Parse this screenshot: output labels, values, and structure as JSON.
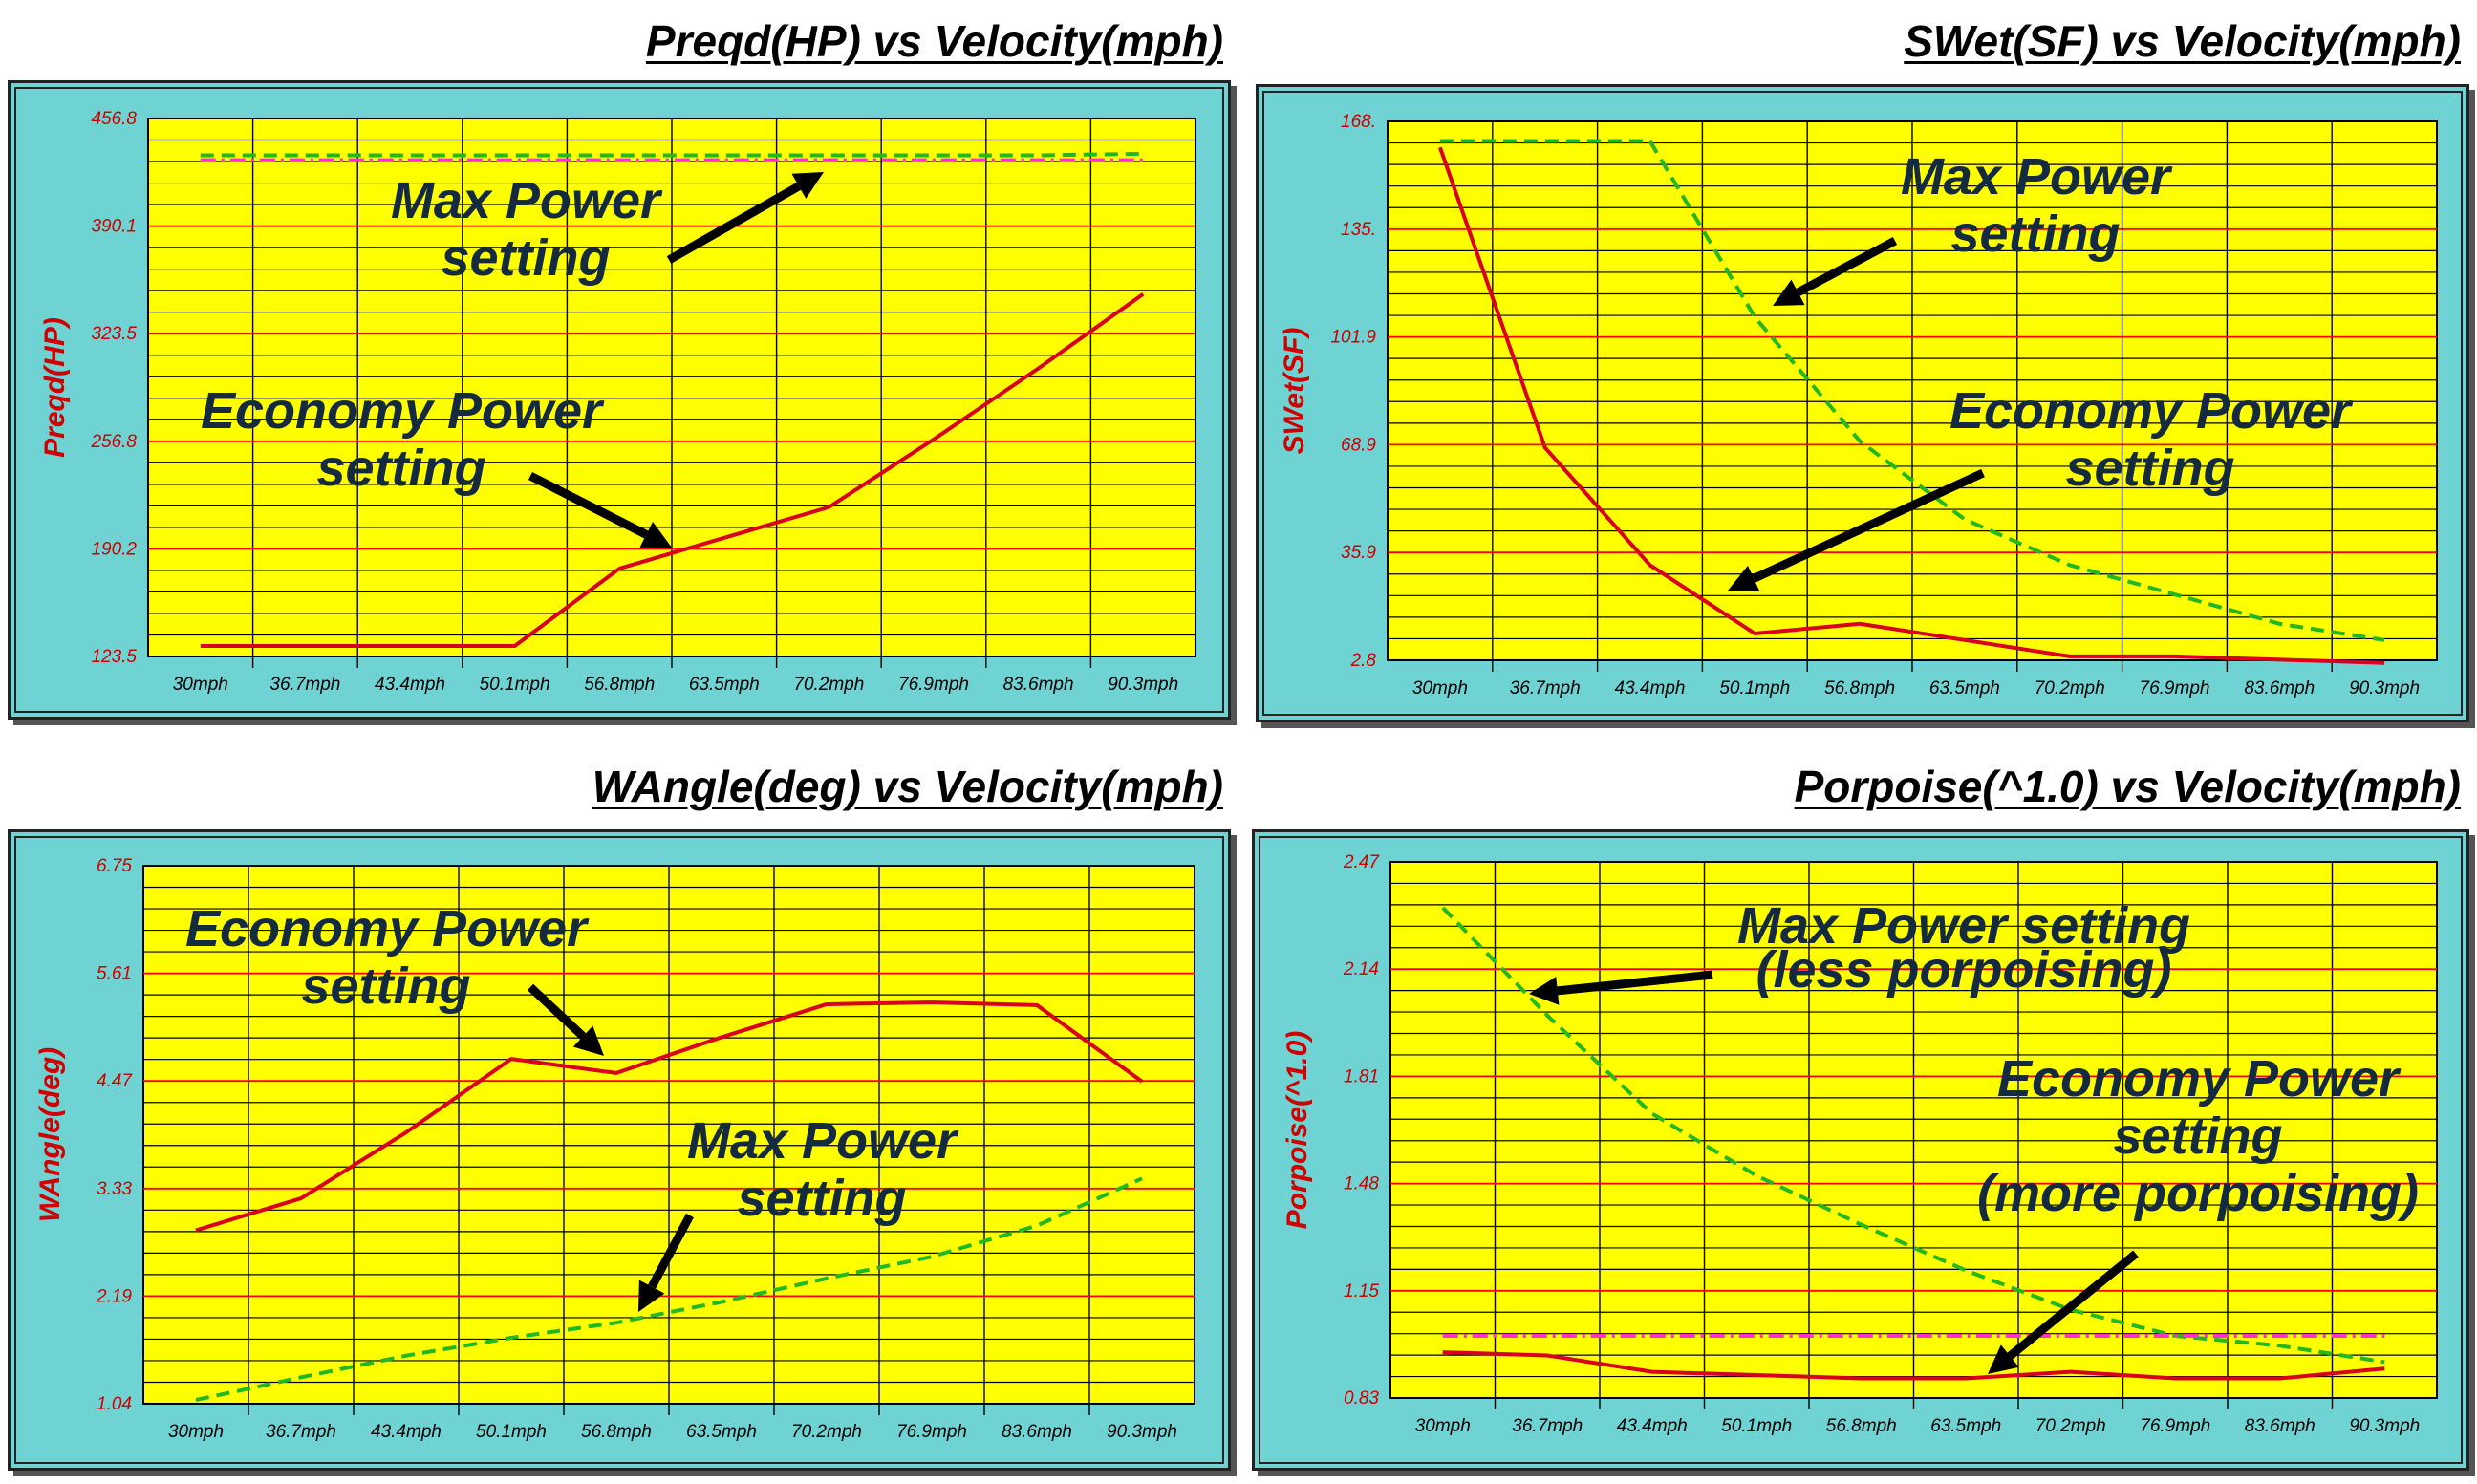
{
  "colors": {
    "panel_bg": "#6fd3d3",
    "plot_bg": "#ffff00",
    "red_grid": "#ff0000",
    "economy_line": "#d8001c",
    "max_line": "#22b822",
    "magenta_ref": "#ff33cc",
    "annotation_text": "#142a40"
  },
  "chart_data": [
    {
      "type": "line",
      "title": "Preqd(HP) vs Velocity(mph)",
      "ylabel": "Preqd(HP)",
      "xlabel": "",
      "categories": [
        "30mph",
        "36.7mph",
        "43.4mph",
        "50.1mph",
        "56.8mph",
        "63.5mph",
        "70.2mph",
        "76.9mph",
        "83.6mph",
        "90.3mph"
      ],
      "yticks": [
        "123.5",
        "190.2",
        "256.8",
        "323.5",
        "390.1",
        "456.8"
      ],
      "ylim": [
        123.5,
        456.8
      ],
      "grid": true,
      "series": [
        {
          "key": "economy",
          "style": "solid",
          "color": "#d8001c",
          "values": [
            130,
            130,
            130,
            130,
            178,
            197,
            216,
            258,
            302,
            348
          ]
        },
        {
          "key": "max",
          "style": "dashed",
          "color": "#22b822",
          "values": [
            434,
            434,
            434,
            434,
            434,
            434,
            434,
            434,
            434,
            435
          ]
        },
        {
          "key": "ref",
          "style": "dashdot",
          "color": "#ff33cc",
          "values": [
            431,
            431,
            431,
            431,
            431,
            431,
            431,
            431,
            431,
            431
          ]
        }
      ],
      "annotations": [
        {
          "lines": [
            "Max Power",
            "setting"
          ]
        },
        {
          "lines": [
            "Economy Power",
            "setting"
          ]
        }
      ]
    },
    {
      "type": "line",
      "title": "SWet(SF) vs Velocity(mph)",
      "ylabel": "SWet(SF)",
      "xlabel": "",
      "categories": [
        "30mph",
        "36.7mph",
        "43.4mph",
        "50.1mph",
        "56.8mph",
        "63.5mph",
        "70.2mph",
        "76.9mph",
        "83.6mph",
        "90.3mph"
      ],
      "yticks": [
        "2.8",
        "35.9",
        "68.9",
        "101.9",
        "135.",
        "168."
      ],
      "ylim": [
        2.8,
        168
      ],
      "grid": true,
      "series": [
        {
          "key": "economy",
          "style": "solid",
          "color": "#d8001c",
          "values": [
            160,
            68,
            32,
            11,
            14,
            9,
            4,
            4,
            3,
            2
          ]
        },
        {
          "key": "max",
          "style": "dashed",
          "color": "#22b822",
          "values": [
            162,
            162,
            162,
            108,
            70,
            46,
            32,
            23,
            14,
            9
          ]
        }
      ],
      "annotations": [
        {
          "lines": [
            "Max Power",
            "setting"
          ]
        },
        {
          "lines": [
            "Economy Power",
            "setting"
          ]
        }
      ]
    },
    {
      "type": "line",
      "title": "WAngle(deg) vs Velocity(mph)",
      "ylabel": "WAngle(deg)",
      "xlabel": "",
      "categories": [
        "30mph",
        "36.7mph",
        "43.4mph",
        "50.1mph",
        "56.8mph",
        "63.5mph",
        "70.2mph",
        "76.9mph",
        "83.6mph",
        "90.3mph"
      ],
      "yticks": [
        "1.04",
        "2.19",
        "3.33",
        "4.47",
        "5.61",
        "6.75"
      ],
      "ylim": [
        1.04,
        6.75
      ],
      "grid": true,
      "series": [
        {
          "key": "economy",
          "style": "solid",
          "color": "#d8001c",
          "values": [
            2.88,
            3.22,
            3.92,
            4.7,
            4.55,
            4.93,
            5.28,
            5.3,
            5.27,
            4.46
          ]
        },
        {
          "key": "max",
          "style": "dashed",
          "color": "#22b822",
          "values": [
            1.08,
            1.32,
            1.55,
            1.74,
            1.9,
            2.12,
            2.37,
            2.6,
            2.93,
            3.43
          ]
        }
      ],
      "annotations": [
        {
          "lines": [
            "Economy Power",
            "setting"
          ]
        },
        {
          "lines": [
            "Max Power",
            "setting"
          ]
        }
      ]
    },
    {
      "type": "line",
      "title": "Porpoise(^1.0) vs Velocity(mph)",
      "ylabel": "Porpoise(^1.0)",
      "xlabel": "",
      "categories": [
        "30mph",
        "36.7mph",
        "43.4mph",
        "50.1mph",
        "56.8mph",
        "63.5mph",
        "70.2mph",
        "76.9mph",
        "83.6mph",
        "90.3mph"
      ],
      "yticks": [
        "0.83",
        "1.15",
        "1.48",
        "1.81",
        "2.14",
        "2.47"
      ],
      "ylim": [
        0.83,
        2.47
      ],
      "grid": true,
      "series": [
        {
          "key": "economy",
          "style": "solid",
          "color": "#d8001c",
          "values": [
            0.97,
            0.96,
            0.91,
            0.9,
            0.89,
            0.89,
            0.91,
            0.89,
            0.89,
            0.92
          ]
        },
        {
          "key": "max",
          "style": "dashed",
          "color": "#22b822",
          "values": [
            2.33,
            2.0,
            1.7,
            1.51,
            1.36,
            1.22,
            1.1,
            1.02,
            0.99,
            0.94
          ]
        },
        {
          "key": "ref",
          "style": "dashdot",
          "color": "#ff33cc",
          "values": [
            1.02,
            1.02,
            1.02,
            1.02,
            1.02,
            1.02,
            1.02,
            1.02,
            1.02,
            1.02
          ]
        }
      ],
      "annotations": [
        {
          "lines": [
            "Max Power setting",
            "(less porpoising)"
          ]
        },
        {
          "lines": [
            "Economy Power",
            "setting",
            "(more porpoising)"
          ]
        }
      ]
    }
  ]
}
